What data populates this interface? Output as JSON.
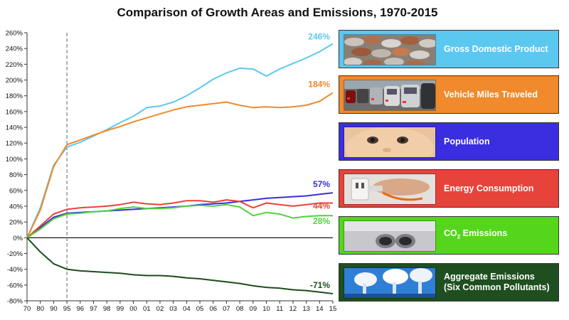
{
  "chart_data": {
    "type": "line",
    "title": "Comparison of Growth Areas and Emissions, 1970-2015",
    "x_ticks": [
      "70",
      "80",
      "90",
      "95",
      "96",
      "97",
      "98",
      "99",
      "00",
      "01",
      "02",
      "03",
      "04",
      "05",
      "06",
      "07",
      "08",
      "09",
      "10",
      "11",
      "12",
      "13",
      "14",
      "15"
    ],
    "x_note": "Axis is evenly spaced by tick: decades 1970-1990, then 1995 onward yearly; dashed reference line at 95.",
    "reference_line_x": "95",
    "ylim": [
      -80,
      260
    ],
    "y_ticks": [
      "260%",
      "240%",
      "220%",
      "200%",
      "180%",
      "160%",
      "140%",
      "120%",
      "100%",
      "80%",
      "60%",
      "40%",
      "20%",
      "0%",
      "-20%",
      "-40%",
      "-60%",
      "-80%"
    ],
    "y_tick_values": [
      260,
      240,
      220,
      200,
      180,
      160,
      140,
      120,
      100,
      80,
      60,
      40,
      20,
      0,
      -20,
      -40,
      -60,
      -80
    ],
    "grid": false,
    "legend_placement": "right",
    "series": [
      {
        "name": "Gross Domestic Product",
        "color": "#5bc8f0",
        "end_label": "246%",
        "values": [
          0,
          38,
          92,
          115,
          121,
          129,
          137,
          146,
          154,
          165,
          167,
          172,
          180,
          190,
          201,
          209,
          215,
          214,
          205,
          214,
          221,
          228,
          236,
          246
        ]
      },
      {
        "name": "Vehicle Miles Traveled",
        "color": "#f08a2c",
        "end_label": "184%",
        "values": [
          0,
          35,
          90,
          118,
          124,
          130,
          136,
          141,
          147,
          152,
          157,
          162,
          166,
          168,
          170,
          172,
          168,
          165,
          166,
          165,
          166,
          168,
          173,
          184
        ]
      },
      {
        "name": "Population",
        "color": "#3a2ee0",
        "end_label": "57%",
        "values": [
          0,
          13,
          26,
          31,
          32,
          33,
          34,
          35,
          36,
          37,
          38,
          39,
          40,
          42,
          43,
          44,
          46,
          48,
          50,
          51,
          52,
          53,
          55,
          57
        ]
      },
      {
        "name": "Energy Consumption",
        "color": "#e8433a",
        "end_label": "44%",
        "values": [
          0,
          15,
          30,
          36,
          38,
          39,
          40,
          42,
          45,
          43,
          42,
          44,
          47,
          47,
          45,
          48,
          46,
          38,
          44,
          42,
          40,
          42,
          44,
          44
        ]
      },
      {
        "name": "CO2 Emissions",
        "color": "#4fd43a",
        "end_label": "28%",
        "values": [
          0,
          11,
          24,
          30,
          31,
          33,
          34,
          37,
          39,
          37,
          37,
          38,
          40,
          41,
          40,
          42,
          39,
          28,
          32,
          30,
          25,
          27,
          28,
          28
        ]
      },
      {
        "name": "Aggregate Emissions (Six Common Pollutants)",
        "color": "#1d4d1d",
        "end_label": "-71%",
        "values": [
          0,
          -18,
          -33,
          -40,
          -42,
          -43,
          -44,
          -45,
          -47,
          -48,
          -48,
          -49,
          -51,
          -52,
          -54,
          -56,
          -58,
          -61,
          -63,
          -64,
          -66,
          -67,
          -69,
          -71
        ]
      }
    ]
  },
  "legend": [
    {
      "label": "Gross Domestic Product",
      "bg": "#5bc8f0",
      "icon": "coins-photo"
    },
    {
      "label": "Vehicle Miles Traveled",
      "bg": "#f08a2c",
      "icon": "traffic-photo"
    },
    {
      "label": "Population",
      "bg": "#3a2ee0",
      "icon": "baby-photo"
    },
    {
      "label": "Energy Consumption",
      "bg": "#e8433a",
      "icon": "power-plug-photo"
    },
    {
      "label_main": "CO",
      "label_sub": "2",
      "label_rest": " Emissions",
      "bg": "#55d61c",
      "icon": "exhaust-pipe-photo"
    },
    {
      "label": "Aggregate Emissions\n(Six Common Pollutants)",
      "bg": "#1f4f20",
      "icon": "smokestacks-photo"
    }
  ]
}
